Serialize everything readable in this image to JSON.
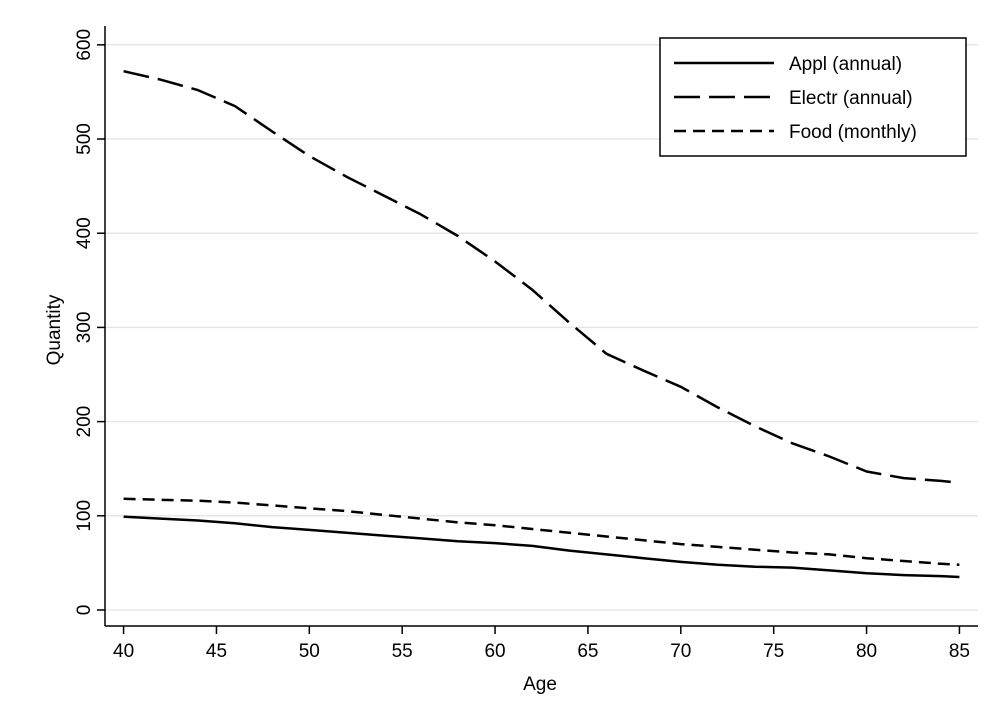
{
  "chart_data": {
    "type": "line",
    "title": "",
    "xlabel": "Age",
    "ylabel": "Quantity",
    "xlim": [
      39,
      86
    ],
    "ylim": [
      -17,
      620
    ],
    "x_ticks": [
      40,
      45,
      50,
      55,
      60,
      65,
      70,
      75,
      80,
      85
    ],
    "y_ticks": [
      0,
      100,
      200,
      300,
      400,
      500,
      600
    ],
    "grid": "horizontal",
    "legend_position": "top-right",
    "x": [
      40,
      42,
      44,
      46,
      48,
      50,
      52,
      54,
      56,
      58,
      60,
      62,
      64,
      66,
      68,
      70,
      72,
      74,
      76,
      78,
      80,
      82,
      84,
      85
    ],
    "series": [
      {
        "name": "Appl (annual)",
        "style": "solid",
        "values": [
          99,
          97,
          95,
          92,
          88,
          85,
          82,
          79,
          76,
          73,
          71,
          68,
          63,
          59,
          55,
          51,
          48,
          46,
          45,
          42,
          39,
          37,
          36,
          35
        ]
      },
      {
        "name": "Electr (annual)",
        "style": "long-dash",
        "values": [
          572,
          563,
          552,
          535,
          508,
          482,
          460,
          440,
          420,
          397,
          370,
          340,
          305,
          272,
          254,
          237,
          215,
          195,
          177,
          163,
          147,
          140,
          137,
          135
        ]
      },
      {
        "name": "Food (monthly)",
        "style": "short-dash",
        "values": [
          118,
          117,
          116,
          114,
          111,
          108,
          105,
          101,
          97,
          93,
          90,
          86,
          82,
          78,
          74,
          70,
          67,
          64,
          61,
          59,
          55,
          52,
          49,
          48
        ]
      }
    ]
  }
}
